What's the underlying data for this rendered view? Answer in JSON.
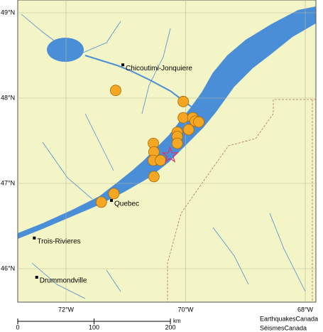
{
  "map": {
    "lat_ticks": [
      {
        "value": 49,
        "label": "49°N"
      },
      {
        "value": 48,
        "label": "48°N"
      },
      {
        "value": 47,
        "label": "47°N"
      },
      {
        "value": 46,
        "label": "46°N"
      }
    ],
    "lon_ticks": [
      {
        "value": -72,
        "label": "72°W"
      },
      {
        "value": -70,
        "label": "70°W"
      },
      {
        "value": -68,
        "label": "68°W"
      }
    ],
    "cities": [
      {
        "name": "Chicoutimi-Jonquiere",
        "lat": 48.39,
        "lon": -71.05
      },
      {
        "name": "Quebec",
        "lat": 46.8,
        "lon": -71.24
      },
      {
        "name": "Trois-Rivieres",
        "lat": 46.36,
        "lon": -72.53
      },
      {
        "name": "Drummondville",
        "lat": 45.9,
        "lon": -72.49
      }
    ],
    "earthquakes": [
      {
        "lat": 48.09,
        "lon": -71.17
      },
      {
        "lat": 47.96,
        "lon": -70.04
      },
      {
        "lat": 47.77,
        "lon": -70.04
      },
      {
        "lat": 47.77,
        "lon": -69.88
      },
      {
        "lat": 47.73,
        "lon": -69.84
      },
      {
        "lat": 47.72,
        "lon": -69.78
      },
      {
        "lat": 47.63,
        "lon": -69.95
      },
      {
        "lat": 47.6,
        "lon": -70.14
      },
      {
        "lat": 47.55,
        "lon": -70.14
      },
      {
        "lat": 47.47,
        "lon": -70.54
      },
      {
        "lat": 47.37,
        "lon": -70.53
      },
      {
        "lat": 47.47,
        "lon": -70.14
      },
      {
        "lat": 47.27,
        "lon": -70.54
      },
      {
        "lat": 47.27,
        "lon": -70.42
      },
      {
        "lat": 47.08,
        "lon": -70.53
      },
      {
        "lat": 46.88,
        "lon": -71.2
      },
      {
        "lat": 46.78,
        "lon": -71.41
      }
    ],
    "epicenter": {
      "lat": 47.33,
      "lon": -70.26
    },
    "scale_bar": {
      "ticks": [
        0,
        100,
        200
      ],
      "unit": "km"
    },
    "credits": [
      "EarthquakesCanada",
      "SéismesCanada"
    ]
  }
}
